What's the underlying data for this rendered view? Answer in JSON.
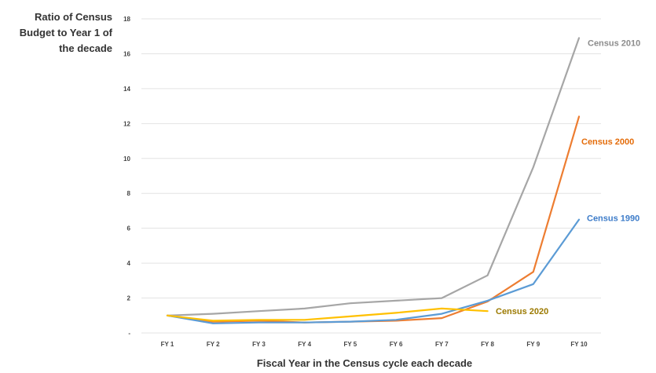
{
  "chart_data": {
    "type": "line",
    "ylabel_lines": [
      "Ratio of Census",
      "Budget to Year 1 of",
      "the decade"
    ],
    "xlabel": "Fiscal Year in the Census cycle each decade",
    "categories": [
      "FY 1",
      "FY 2",
      "FY 3",
      "FY 4",
      "FY 5",
      "FY 6",
      "FY 7",
      "FY 8",
      "FY 9",
      "FY 10"
    ],
    "ylim": [
      0,
      18
    ],
    "yticks": [
      {
        "value": 0,
        "label": "-"
      },
      {
        "value": 2,
        "label": "2"
      },
      {
        "value": 4,
        "label": "4"
      },
      {
        "value": 6,
        "label": "6"
      },
      {
        "value": 8,
        "label": "8"
      },
      {
        "value": 10,
        "label": "10"
      },
      {
        "value": 12,
        "label": "12"
      },
      {
        "value": 14,
        "label": "14"
      },
      {
        "value": 16,
        "label": "16"
      },
      {
        "value": 18,
        "label": "18"
      }
    ],
    "grid": true,
    "series": [
      {
        "name": "Census 2010",
        "color": "#a6a6a6",
        "values": [
          1.0,
          1.1,
          1.25,
          1.4,
          1.7,
          1.85,
          2.0,
          3.3,
          9.5,
          16.9
        ]
      },
      {
        "name": "Census 2000",
        "color": "#ed7d31",
        "values": [
          1.0,
          0.65,
          0.7,
          0.6,
          0.65,
          0.7,
          0.85,
          1.8,
          3.5,
          12.4
        ]
      },
      {
        "name": "Census 1990",
        "color": "#5b9bd5",
        "values": [
          1.0,
          0.55,
          0.6,
          0.6,
          0.65,
          0.75,
          1.1,
          1.85,
          2.8,
          6.5
        ]
      },
      {
        "name": "Census 2020",
        "color": "#ffc000",
        "values": [
          1.0,
          0.7,
          0.75,
          0.75,
          0.95,
          1.15,
          1.4,
          1.25,
          null,
          null
        ]
      }
    ],
    "series_label_colors": {
      "Census 2010": "#8c8c8c",
      "Census 2000": "#e46c0a",
      "Census 1990": "#3d7cc9",
      "Census 2020": "#9c7a00"
    }
  }
}
